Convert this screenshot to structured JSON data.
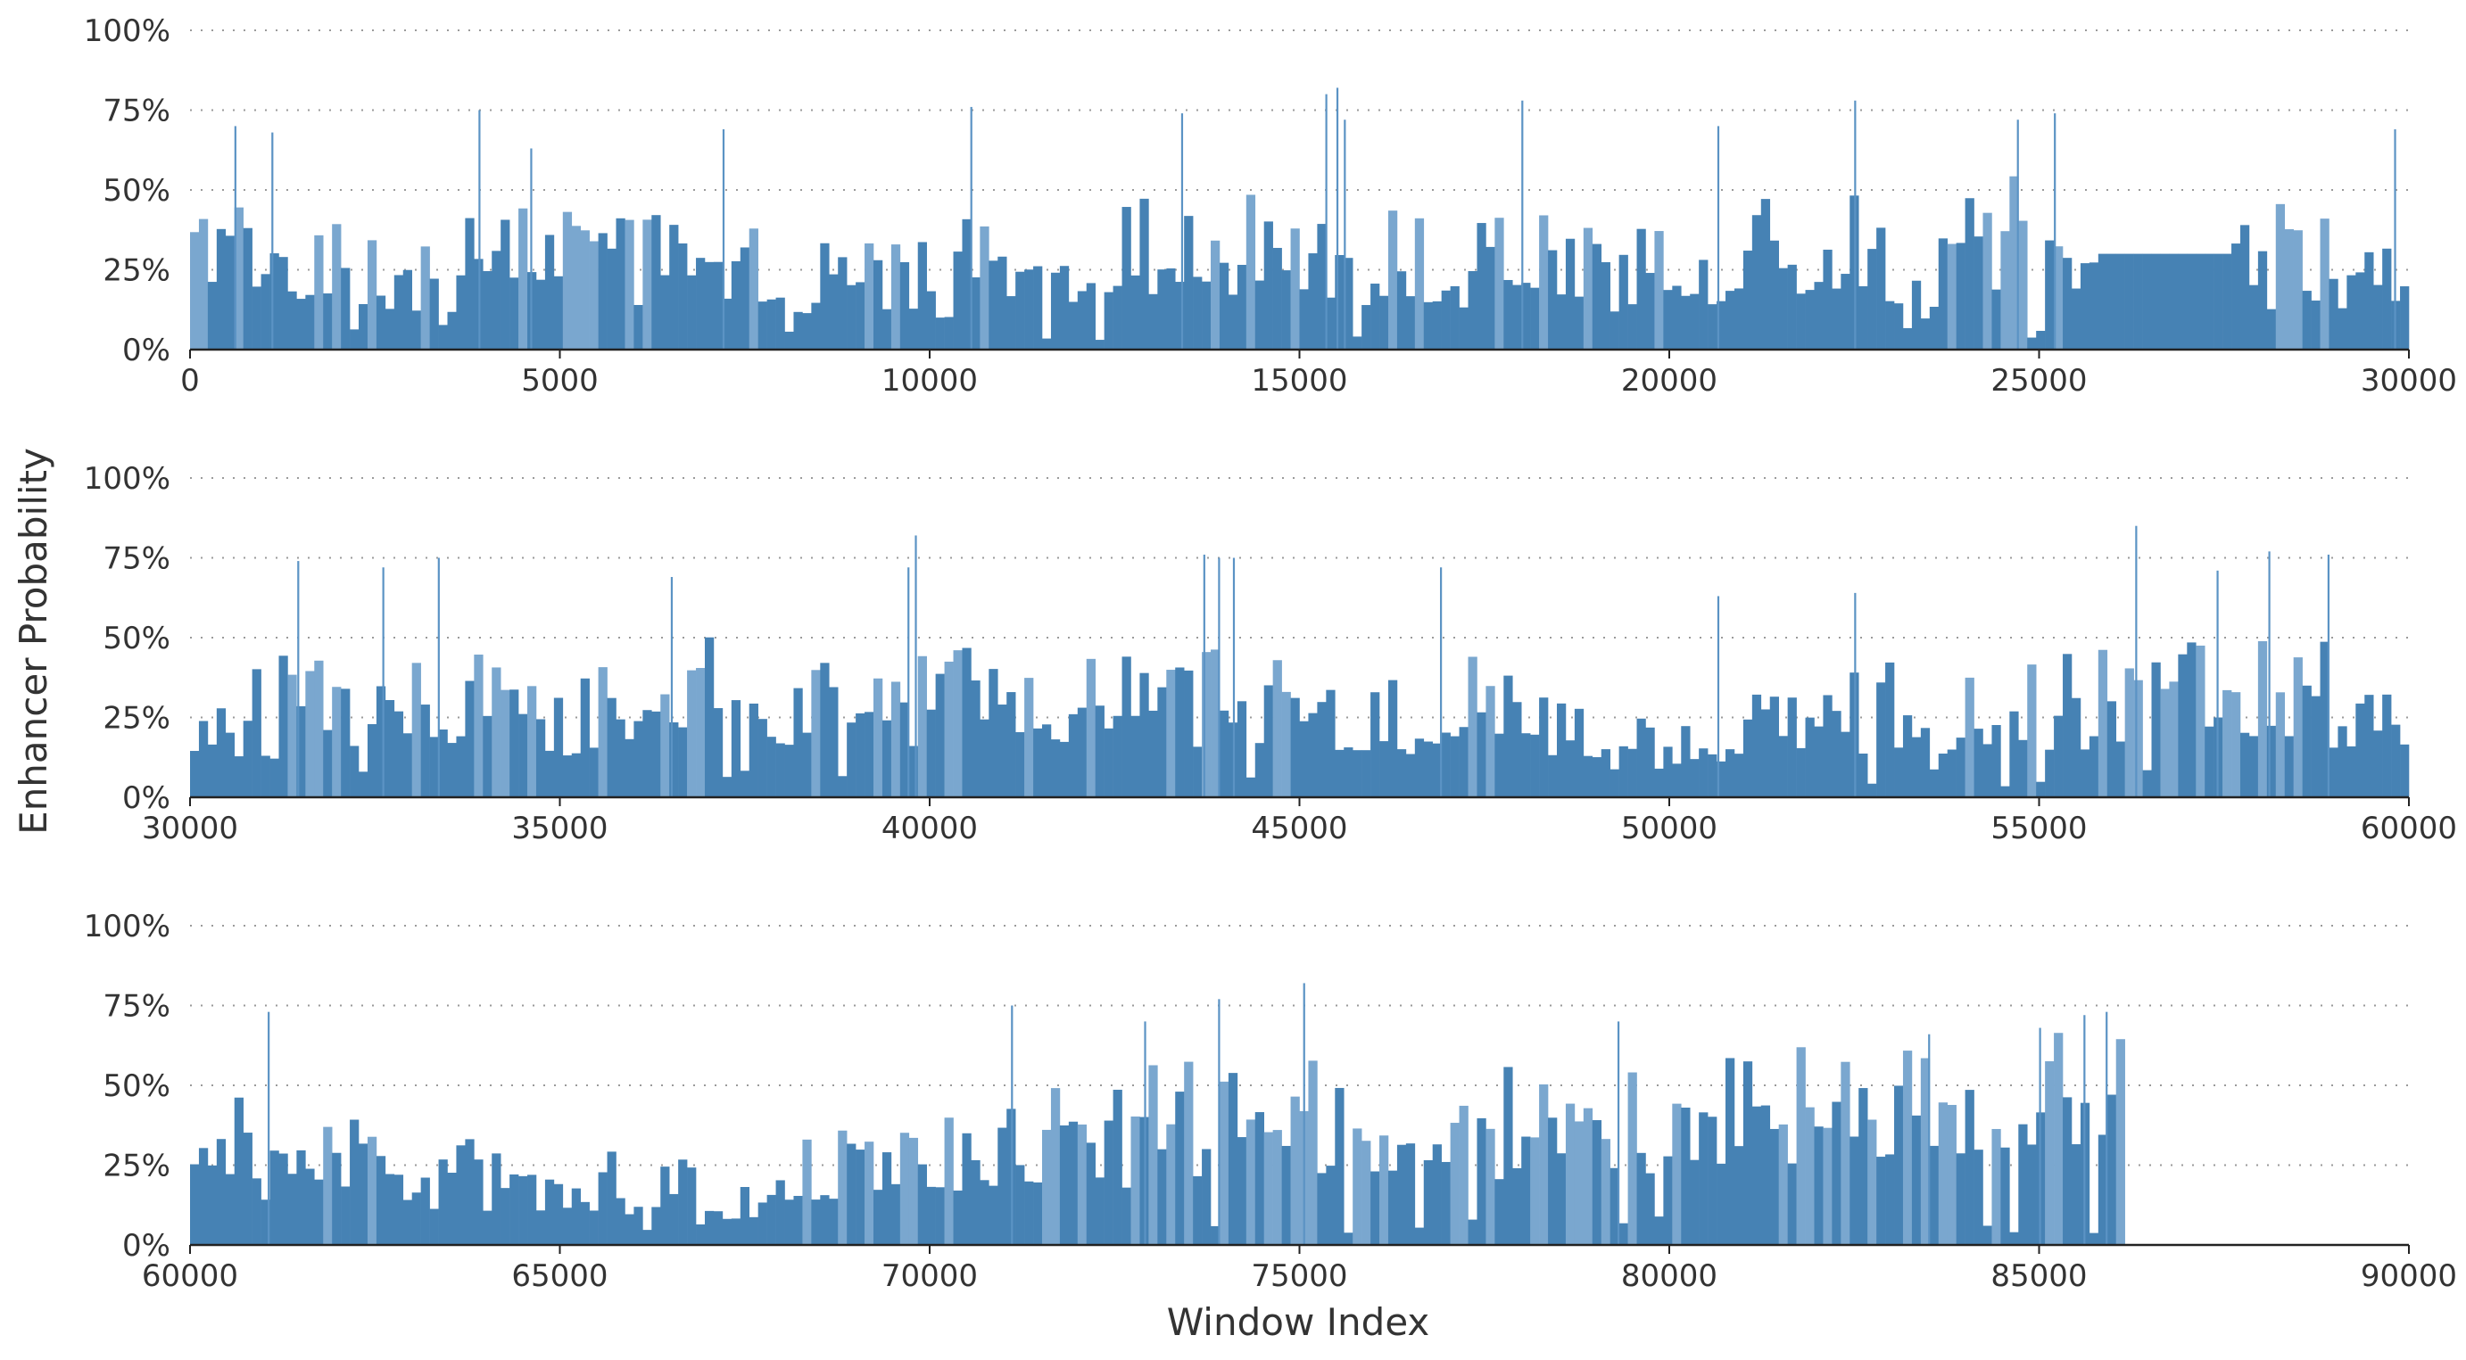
{
  "chart_data": [
    {
      "type": "bar",
      "x_range": [
        0,
        30000
      ],
      "xticks": [
        0,
        5000,
        10000,
        15000,
        20000,
        25000,
        30000
      ],
      "ylim": [
        0,
        100
      ],
      "yticks": [
        0,
        25,
        50,
        75,
        100
      ],
      "ytick_labels": [
        "0%",
        "25%",
        "50%",
        "75%",
        "100%"
      ],
      "grid": "horizontal dotted",
      "color": "#4682b4",
      "data_end": 30000,
      "profile": [
        {
          "x": 0,
          "base": 18,
          "spread": 22
        },
        {
          "x": 1500,
          "base": 14,
          "spread": 18
        },
        {
          "x": 3000,
          "base": 11,
          "spread": 16
        },
        {
          "x": 4500,
          "base": 18,
          "spread": 20
        },
        {
          "x": 6000,
          "base": 16,
          "spread": 19
        },
        {
          "x": 8000,
          "base": 12,
          "spread": 16
        },
        {
          "x": 10000,
          "base": 12,
          "spread": 17
        },
        {
          "x": 12000,
          "base": 16,
          "spread": 19
        },
        {
          "x": 13500,
          "base": 18,
          "spread": 20
        },
        {
          "x": 15000,
          "base": 15,
          "spread": 20
        },
        {
          "x": 17000,
          "base": 15,
          "spread": 19
        },
        {
          "x": 20000,
          "base": 13,
          "spread": 18
        },
        {
          "x": 22500,
          "base": 18,
          "spread": 22
        },
        {
          "x": 23200,
          "base": 10,
          "spread": 14
        },
        {
          "x": 24500,
          "base": 20,
          "spread": 24
        },
        {
          "x": 25700,
          "base": 15,
          "spread": 14
        },
        {
          "x": 27600,
          "base": 15,
          "spread": 20
        },
        {
          "x": 30000,
          "base": 12,
          "spread": 18
        }
      ],
      "flat_segment": {
        "x_start": 25750,
        "x_end": 27600,
        "value": 30
      },
      "peaks": [
        {
          "x": 600,
          "value": 70
        },
        {
          "x": 1100,
          "value": 68
        },
        {
          "x": 3900,
          "value": 75
        },
        {
          "x": 4600,
          "value": 63
        },
        {
          "x": 7200,
          "value": 69
        },
        {
          "x": 10550,
          "value": 76
        },
        {
          "x": 13400,
          "value": 74
        },
        {
          "x": 15350,
          "value": 80
        },
        {
          "x": 15500,
          "value": 82
        },
        {
          "x": 15600,
          "value": 72
        },
        {
          "x": 18000,
          "value": 78
        },
        {
          "x": 20650,
          "value": 70
        },
        {
          "x": 22500,
          "value": 78
        },
        {
          "x": 24700,
          "value": 72
        },
        {
          "x": 25200,
          "value": 74
        },
        {
          "x": 29800,
          "value": 69
        }
      ]
    },
    {
      "type": "bar",
      "x_range": [
        30000,
        60000
      ],
      "xticks": [
        30000,
        35000,
        40000,
        45000,
        50000,
        55000,
        60000
      ],
      "ylim": [
        0,
        100
      ],
      "yticks": [
        0,
        25,
        50,
        75,
        100
      ],
      "ytick_labels": [
        "0%",
        "25%",
        "50%",
        "75%",
        "100%"
      ],
      "grid": "horizontal dotted",
      "color": "#4682b4",
      "data_end": 60000,
      "profile": [
        {
          "x": 30000,
          "base": 12,
          "spread": 16
        },
        {
          "x": 31500,
          "base": 16,
          "spread": 20
        },
        {
          "x": 33000,
          "base": 18,
          "spread": 21
        },
        {
          "x": 35000,
          "base": 13,
          "spread": 18
        },
        {
          "x": 36500,
          "base": 20,
          "spread": 20
        },
        {
          "x": 38000,
          "base": 15,
          "spread": 18
        },
        {
          "x": 40000,
          "base": 17,
          "spread": 20
        },
        {
          "x": 41500,
          "base": 19,
          "spread": 20
        },
        {
          "x": 43000,
          "base": 14,
          "spread": 18
        },
        {
          "x": 44000,
          "base": 18,
          "spread": 22
        },
        {
          "x": 45500,
          "base": 12,
          "spread": 16
        },
        {
          "x": 47500,
          "base": 16,
          "spread": 19
        },
        {
          "x": 49000,
          "base": 10,
          "spread": 14
        },
        {
          "x": 50000,
          "base": 6,
          "spread": 10
        },
        {
          "x": 51000,
          "base": 14,
          "spread": 18
        },
        {
          "x": 53000,
          "base": 13,
          "spread": 18
        },
        {
          "x": 55000,
          "base": 14,
          "spread": 19
        },
        {
          "x": 57000,
          "base": 19,
          "spread": 21
        },
        {
          "x": 60000,
          "base": 17,
          "spread": 21
        }
      ],
      "flat_segment": null,
      "peaks": [
        {
          "x": 31450,
          "value": 74
        },
        {
          "x": 32600,
          "value": 72
        },
        {
          "x": 33350,
          "value": 75
        },
        {
          "x": 36500,
          "value": 69
        },
        {
          "x": 39700,
          "value": 72
        },
        {
          "x": 39800,
          "value": 82
        },
        {
          "x": 43700,
          "value": 76
        },
        {
          "x": 43900,
          "value": 75
        },
        {
          "x": 44100,
          "value": 75
        },
        {
          "x": 46900,
          "value": 72
        },
        {
          "x": 50650,
          "value": 63
        },
        {
          "x": 52500,
          "value": 64
        },
        {
          "x": 56300,
          "value": 85
        },
        {
          "x": 57400,
          "value": 71
        },
        {
          "x": 58100,
          "value": 77
        },
        {
          "x": 58900,
          "value": 76
        }
      ]
    },
    {
      "type": "bar",
      "x_range": [
        60000,
        90000
      ],
      "xticks": [
        60000,
        65000,
        70000,
        75000,
        80000,
        85000,
        90000
      ],
      "ylim": [
        0,
        100
      ],
      "yticks": [
        0,
        25,
        50,
        75,
        100
      ],
      "ytick_labels": [
        "0%",
        "25%",
        "50%",
        "75%",
        "100%"
      ],
      "grid": "horizontal dotted",
      "color": "#4682b4",
      "data_end": 86100,
      "profile": [
        {
          "x": 60000,
          "base": 16,
          "spread": 20
        },
        {
          "x": 61500,
          "base": 15,
          "spread": 18
        },
        {
          "x": 63000,
          "base": 12,
          "spread": 16
        },
        {
          "x": 65000,
          "base": 10,
          "spread": 14
        },
        {
          "x": 67000,
          "base": 8,
          "spread": 12
        },
        {
          "x": 68500,
          "base": 12,
          "spread": 16
        },
        {
          "x": 70000,
          "base": 15,
          "spread": 19
        },
        {
          "x": 72000,
          "base": 18,
          "spread": 21
        },
        {
          "x": 74000,
          "base": 22,
          "spread": 23
        },
        {
          "x": 76000,
          "base": 20,
          "spread": 22
        },
        {
          "x": 78000,
          "base": 22,
          "spread": 22
        },
        {
          "x": 80000,
          "base": 24,
          "spread": 23
        },
        {
          "x": 82000,
          "base": 25,
          "spread": 22
        },
        {
          "x": 83500,
          "base": 28,
          "spread": 24
        },
        {
          "x": 84500,
          "base": 30,
          "spread": 24
        },
        {
          "x": 86000,
          "base": 30,
          "spread": 26
        }
      ],
      "flat_segment": null,
      "peaks": [
        {
          "x": 61050,
          "value": 73
        },
        {
          "x": 71100,
          "value": 75
        },
        {
          "x": 72900,
          "value": 70
        },
        {
          "x": 73900,
          "value": 77
        },
        {
          "x": 75050,
          "value": 82
        },
        {
          "x": 79300,
          "value": 70
        },
        {
          "x": 83500,
          "value": 66
        },
        {
          "x": 85000,
          "value": 68
        },
        {
          "x": 85600,
          "value": 72
        },
        {
          "x": 85900,
          "value": 73
        }
      ]
    }
  ],
  "ylabel": "Enhancer Probability",
  "xlabel": "Window Index"
}
